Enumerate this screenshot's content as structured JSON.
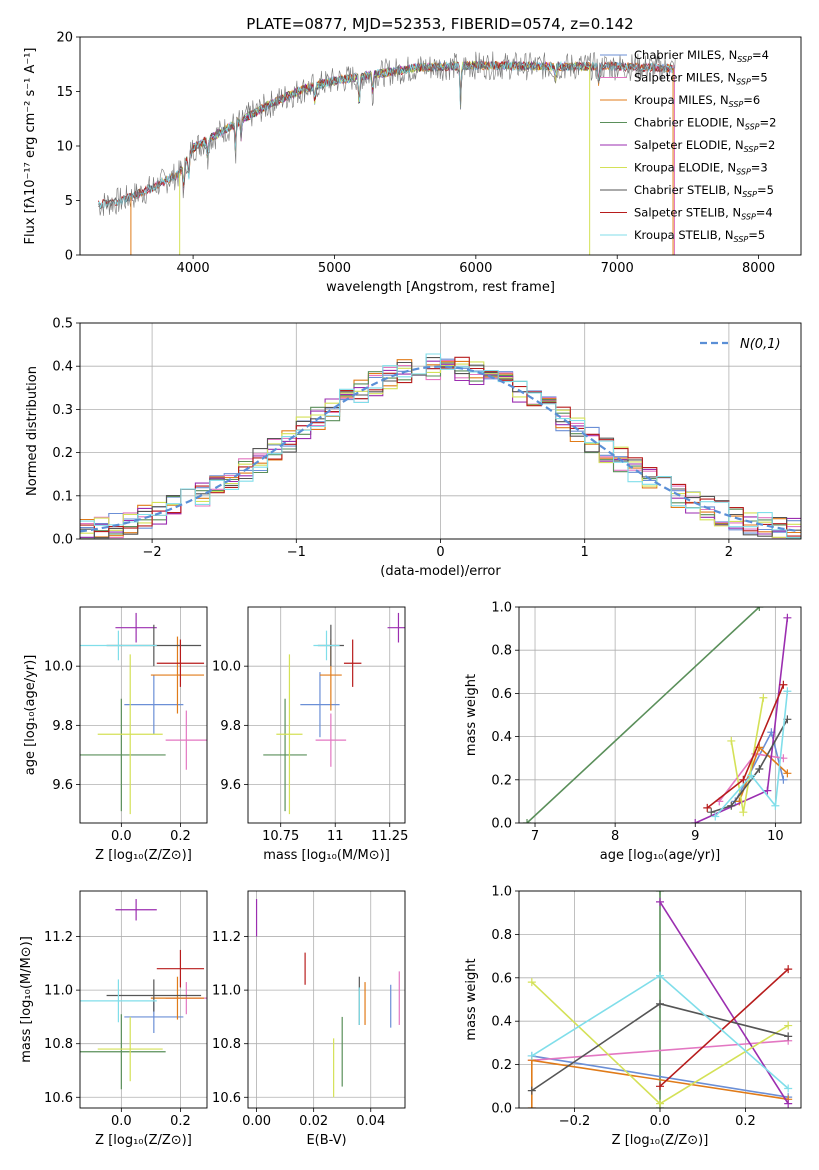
{
  "figure": {
    "title": "PLATE=0877, MJD=52353, FIBERID=0574, z=0.142"
  },
  "colors": {
    "chabrier_miles": "#6b8fd6",
    "salpeter_miles": "#e377c2",
    "kroupa_miles": "#e07b19",
    "chabrier_elodie": "#5a8f5a",
    "salpeter_elodie": "#9b2eb0",
    "kroupa_elodie": "#d4e157",
    "chabrier_stelib": "#555555",
    "salpeter_stelib": "#b71c1c",
    "kroupa_stelib": "#80deea",
    "data": "#777777",
    "normal": "#5a8fd6"
  },
  "chart_data": [
    {
      "id": "spectrum",
      "type": "line",
      "title": "PLATE=0877, MJD=52353, FIBERID=0574, z=0.142",
      "xlabel": "wavelength [Angstrom, rest frame]",
      "ylabel": "Flux [fλ10⁻¹⁷ erg cm⁻² s⁻¹ A⁻¹]",
      "xlim": [
        3200,
        8300
      ],
      "ylim": [
        0,
        20
      ],
      "xticks": [
        4000,
        5000,
        6000,
        7000,
        8000
      ],
      "yticks": [
        0,
        5,
        10,
        15,
        20
      ],
      "legend_position": "top-right",
      "legend": [
        {
          "key": "chabrier_miles",
          "label": "Chabrier MILES, N",
          "sub": "SSP",
          "tail": "=4"
        },
        {
          "key": "salpeter_miles",
          "label": "Salpeter MILES, N",
          "sub": "SSP",
          "tail": "=5"
        },
        {
          "key": "kroupa_miles",
          "label": "Kroupa MILES, N",
          "sub": "SSP",
          "tail": "=6"
        },
        {
          "key": "chabrier_elodie",
          "label": "Chabrier ELODIE, N",
          "sub": "SSP",
          "tail": "=2"
        },
        {
          "key": "salpeter_elodie",
          "label": "Salpeter ELODIE, N",
          "sub": "SSP",
          "tail": "=2"
        },
        {
          "key": "kroupa_elodie",
          "label": "Kroupa ELODIE, N",
          "sub": "SSP",
          "tail": "=3"
        },
        {
          "key": "chabrier_stelib",
          "label": "Chabrier STELIB, N",
          "sub": "SSP",
          "tail": "=5"
        },
        {
          "key": "salpeter_stelib",
          "label": "Salpeter STELIB, N",
          "sub": "SSP",
          "tail": "=4"
        },
        {
          "key": "kroupa_stelib",
          "label": "Kroupa STELIB, N",
          "sub": "SSP",
          "tail": "=5"
        }
      ],
      "continuum": [
        [
          3330,
          4.6
        ],
        [
          3500,
          5.0
        ],
        [
          3650,
          5.8
        ],
        [
          3800,
          6.8
        ],
        [
          3900,
          7.4
        ],
        [
          4000,
          9.8
        ],
        [
          4200,
          11.3
        ],
        [
          4400,
          12.8
        ],
        [
          4600,
          14.2
        ],
        [
          4800,
          15.3
        ],
        [
          5000,
          16.0
        ],
        [
          5300,
          16.6
        ],
        [
          5600,
          17.2
        ],
        [
          6000,
          17.4
        ],
        [
          6500,
          17.3
        ],
        [
          7000,
          17.3
        ],
        [
          7400,
          17.1
        ]
      ],
      "absorption_lines": [
        [
          3934,
          3.0
        ],
        [
          3969,
          2.5
        ],
        [
          4102,
          2.0
        ],
        [
          4300,
          3.0
        ],
        [
          4340,
          2.0
        ],
        [
          4861,
          2.0
        ],
        [
          5175,
          3.5
        ],
        [
          5270,
          2.0
        ],
        [
          5892,
          4.5
        ],
        [
          6563,
          1.5
        ],
        [
          6870,
          2.0
        ]
      ],
      "model_gaps": [
        [
          3570,
          3900
        ],
        [
          6800,
          7400
        ]
      ]
    },
    {
      "id": "residuals",
      "type": "histogram",
      "xlabel": "(data-model)/error",
      "ylabel": "Normed distribution",
      "xlim": [
        -2.5,
        2.5
      ],
      "ylim": [
        0,
        0.5
      ],
      "xticks": [
        -2,
        -1,
        0,
        1,
        2
      ],
      "yticks": [
        0,
        0.1,
        0.2,
        0.3,
        0.4,
        0.5
      ],
      "bin_width": 0.1,
      "legend": [
        {
          "label": "N(0,1)",
          "style": "dashed"
        }
      ],
      "legend_position": "top-right",
      "series_keys": [
        "chabrier_miles",
        "salpeter_miles",
        "kroupa_miles",
        "chabrier_elodie",
        "salpeter_elodie",
        "kroupa_elodie",
        "chabrier_stelib",
        "salpeter_stelib",
        "kroupa_stelib"
      ]
    },
    {
      "id": "age_vs_z",
      "type": "errorbar",
      "xlabel": "Z [log₁₀(Z/Z⊙)]",
      "ylabel": "age  [log₁₀(age/yr)]",
      "xlim": [
        -0.14,
        0.29
      ],
      "ylim": [
        9.47,
        10.2
      ],
      "xticks": [
        0.0,
        0.2
      ],
      "yticks": [
        9.6,
        9.8,
        10.0
      ],
      "points": [
        {
          "key": "chabrier_miles",
          "x": 0.11,
          "xerr": 0.1,
          "y": 9.87,
          "yerr": 0.1
        },
        {
          "key": "salpeter_miles",
          "x": 0.22,
          "xerr": 0.07,
          "y": 9.75,
          "yerr": 0.1
        },
        {
          "key": "kroupa_miles",
          "x": 0.19,
          "xerr": 0.09,
          "y": 9.97,
          "yerr": 0.13
        },
        {
          "key": "chabrier_elodie",
          "x": 0.0,
          "xerr": 0.15,
          "y": 9.7,
          "yerr": 0.19
        },
        {
          "key": "salpeter_elodie",
          "x": 0.05,
          "xerr": 0.07,
          "y": 10.13,
          "yerr": 0.05
        },
        {
          "key": "kroupa_elodie",
          "x": 0.03,
          "xerr": 0.11,
          "y": 9.77,
          "yerr": 0.27
        },
        {
          "key": "chabrier_stelib",
          "x": 0.11,
          "xerr": 0.16,
          "y": 10.07,
          "yerr": 0.07
        },
        {
          "key": "salpeter_stelib",
          "x": 0.2,
          "xerr": 0.08,
          "y": 10.01,
          "yerr": 0.08
        },
        {
          "key": "kroupa_stelib",
          "x": -0.01,
          "xerr": 0.13,
          "y": 10.07,
          "yerr": 0.05
        }
      ]
    },
    {
      "id": "age_vs_mass",
      "type": "errorbar",
      "xlabel": "mass [log₁₀(M/M⊙)]",
      "ylabel": "",
      "xlim": [
        10.6,
        11.32
      ],
      "ylim": [
        9.47,
        10.2
      ],
      "xticks": [
        10.75,
        11.0,
        11.25
      ],
      "yticks": [
        9.6,
        9.8,
        10.0
      ],
      "points": [
        {
          "key": "chabrier_miles",
          "x": 10.93,
          "xerr": 0.09,
          "y": 9.87,
          "yerr": 0.11
        },
        {
          "key": "salpeter_miles",
          "x": 10.98,
          "xerr": 0.07,
          "y": 9.75,
          "yerr": 0.09
        },
        {
          "key": "kroupa_miles",
          "x": 10.98,
          "xerr": 0.05,
          "y": 9.97,
          "yerr": 0.12
        },
        {
          "key": "chabrier_elodie",
          "x": 10.77,
          "xerr": 0.1,
          "y": 9.7,
          "yerr": 0.19
        },
        {
          "key": "salpeter_elodie",
          "x": 11.29,
          "xerr": 0.05,
          "y": 10.13,
          "yerr": 0.05
        },
        {
          "key": "kroupa_elodie",
          "x": 10.79,
          "xerr": 0.06,
          "y": 9.77,
          "yerr": 0.27
        },
        {
          "key": "chabrier_stelib",
          "x": 10.98,
          "xerr": 0.06,
          "y": 10.07,
          "yerr": 0.07
        },
        {
          "key": "salpeter_stelib",
          "x": 11.08,
          "xerr": 0.04,
          "y": 10.01,
          "yerr": 0.08
        },
        {
          "key": "kroupa_stelib",
          "x": 10.96,
          "xerr": 0.06,
          "y": 10.07,
          "yerr": 0.05
        }
      ]
    },
    {
      "id": "weight_vs_age",
      "type": "line",
      "xlabel": "age  [log₁₀(age/yr)]",
      "ylabel": "mass weight",
      "xlim": [
        6.8,
        10.32
      ],
      "ylim": [
        0,
        1
      ],
      "xticks": [
        7,
        8,
        9,
        10
      ],
      "yticks": [
        0.0,
        0.2,
        0.4,
        0.6,
        0.8,
        1.0
      ],
      "series": [
        {
          "key": "chabrier_elodie",
          "x": [
            6.9,
            9.8
          ],
          "y": [
            0.0,
            1.0
          ]
        },
        {
          "key": "chabrier_miles",
          "x": [
            9.5,
            9.95,
            10.1
          ],
          "y": [
            0.1,
            0.42,
            0.2
          ]
        },
        {
          "key": "salpeter_miles",
          "x": [
            9.3,
            9.75,
            10.1
          ],
          "y": [
            0.1,
            0.32,
            0.3
          ]
        },
        {
          "key": "kroupa_miles",
          "x": [
            9.55,
            9.8,
            10.15
          ],
          "y": [
            0.1,
            0.35,
            0.23
          ]
        },
        {
          "key": "salpeter_elodie",
          "x": [
            9.0,
            9.9,
            10.15
          ],
          "y": [
            0.0,
            0.15,
            0.95
          ]
        },
        {
          "key": "kroupa_elodie",
          "x": [
            9.45,
            9.6,
            9.85
          ],
          "y": [
            0.38,
            0.05,
            0.58
          ]
        },
        {
          "key": "chabrier_stelib",
          "x": [
            9.2,
            9.45,
            9.8,
            10.15
          ],
          "y": [
            0.05,
            0.08,
            0.25,
            0.48
          ]
        },
        {
          "key": "salpeter_stelib",
          "x": [
            9.15,
            9.6,
            10.1
          ],
          "y": [
            0.07,
            0.2,
            0.64
          ]
        },
        {
          "key": "kroupa_stelib",
          "x": [
            9.25,
            9.7,
            10.0,
            10.15
          ],
          "y": [
            0.03,
            0.22,
            0.08,
            0.61
          ]
        }
      ]
    },
    {
      "id": "mass_vs_z",
      "type": "errorbar",
      "xlabel": "Z [log₁₀(Z/Z⊙)]",
      "ylabel": "mass [log₁₀(M/M⊙)]",
      "xlim": [
        -0.14,
        0.29
      ],
      "ylim": [
        10.56,
        11.37
      ],
      "xticks": [
        0.0,
        0.2
      ],
      "yticks": [
        10.6,
        10.8,
        11.0,
        11.2
      ],
      "points": [
        {
          "key": "chabrier_miles",
          "x": 0.11,
          "xerr": 0.1,
          "y": 10.9,
          "yerr": 0.06
        },
        {
          "key": "salpeter_miles",
          "x": 0.22,
          "xerr": 0.07,
          "y": 10.97,
          "yerr": 0.06
        },
        {
          "key": "kroupa_miles",
          "x": 0.19,
          "xerr": 0.09,
          "y": 10.97,
          "yerr": 0.08
        },
        {
          "key": "chabrier_elodie",
          "x": 0.0,
          "xerr": 0.15,
          "y": 10.77,
          "yerr": 0.14
        },
        {
          "key": "salpeter_elodie",
          "x": 0.05,
          "xerr": 0.07,
          "y": 11.3,
          "yerr": 0.04
        },
        {
          "key": "kroupa_elodie",
          "x": 0.03,
          "xerr": 0.11,
          "y": 10.78,
          "yerr": 0.12
        },
        {
          "key": "chabrier_stelib",
          "x": 0.11,
          "xerr": 0.16,
          "y": 10.98,
          "yerr": 0.06
        },
        {
          "key": "salpeter_stelib",
          "x": 0.2,
          "xerr": 0.08,
          "y": 11.08,
          "yerr": 0.07
        },
        {
          "key": "kroupa_stelib",
          "x": -0.01,
          "xerr": 0.13,
          "y": 10.96,
          "yerr": 0.08
        }
      ]
    },
    {
      "id": "mass_vs_ebv",
      "type": "errorbar",
      "xlabel": "E(B-V)",
      "ylabel": "",
      "xlim": [
        -0.003,
        0.052
      ],
      "ylim": [
        10.56,
        11.37
      ],
      "xticks": [
        0.0,
        0.02,
        0.04
      ],
      "yticks": [
        10.6,
        10.8,
        11.0,
        11.2
      ],
      "points": [
        {
          "key": "chabrier_miles",
          "x": 0.047,
          "xerr": 0,
          "y": 10.94,
          "yerr": 0.08
        },
        {
          "key": "salpeter_miles",
          "x": 0.05,
          "xerr": 0,
          "y": 10.97,
          "yerr": 0.1
        },
        {
          "key": "kroupa_miles",
          "x": 0.038,
          "xerr": 0,
          "y": 10.95,
          "yerr": 0.08
        },
        {
          "key": "chabrier_elodie",
          "x": 0.03,
          "xerr": 0,
          "y": 10.77,
          "yerr": 0.13
        },
        {
          "key": "salpeter_elodie",
          "x": 0.0,
          "xerr": 0,
          "y": 11.27,
          "yerr": 0.07
        },
        {
          "key": "kroupa_elodie",
          "x": 0.027,
          "xerr": 0,
          "y": 10.71,
          "yerr": 0.11
        },
        {
          "key": "chabrier_stelib",
          "x": 0.036,
          "xerr": 0,
          "y": 10.96,
          "yerr": 0.09
        },
        {
          "key": "salpeter_stelib",
          "x": 0.017,
          "xerr": 0,
          "y": 11.08,
          "yerr": 0.06
        },
        {
          "key": "kroupa_stelib",
          "x": 0.036,
          "xerr": 0,
          "y": 10.94,
          "yerr": 0.07
        }
      ]
    },
    {
      "id": "weight_vs_z",
      "type": "line",
      "xlabel": "Z [log₁₀(Z/Z⊙)]",
      "ylabel": "mass weight",
      "xlim": [
        -0.33,
        0.33
      ],
      "ylim": [
        0,
        1
      ],
      "xticks": [
        -0.2,
        0.0,
        0.2
      ],
      "yticks": [
        0.0,
        0.2,
        0.4,
        0.6,
        0.8,
        1.0
      ],
      "series": [
        {
          "key": "chabrier_elodie",
          "x": [
            0.0,
            0.0
          ],
          "y": [
            0.0,
            1.0
          ]
        },
        {
          "key": "chabrier_miles",
          "x": [
            -0.3,
            0.3
          ],
          "y": [
            0.24,
            0.05
          ]
        },
        {
          "key": "salpeter_miles",
          "x": [
            -0.3,
            0.3
          ],
          "y": [
            0.22,
            0.31
          ]
        },
        {
          "key": "kroupa_miles",
          "x": [
            -0.3,
            -0.3,
            0.3
          ],
          "y": [
            0.0,
            0.22,
            0.04
          ]
        },
        {
          "key": "salpeter_elodie",
          "x": [
            0.0,
            0.3
          ],
          "y": [
            0.95,
            0.02
          ]
        },
        {
          "key": "kroupa_elodie",
          "x": [
            -0.3,
            0.0,
            0.3
          ],
          "y": [
            0.58,
            0.02,
            0.38
          ]
        },
        {
          "key": "chabrier_stelib",
          "x": [
            -0.3,
            0.0,
            0.3
          ],
          "y": [
            0.08,
            0.48,
            0.33
          ]
        },
        {
          "key": "salpeter_stelib",
          "x": [
            0.0,
            0.3
          ],
          "y": [
            0.1,
            0.64
          ]
        },
        {
          "key": "kroupa_stelib",
          "x": [
            -0.3,
            0.0,
            0.3
          ],
          "y": [
            0.24,
            0.61,
            0.09
          ]
        }
      ]
    }
  ]
}
